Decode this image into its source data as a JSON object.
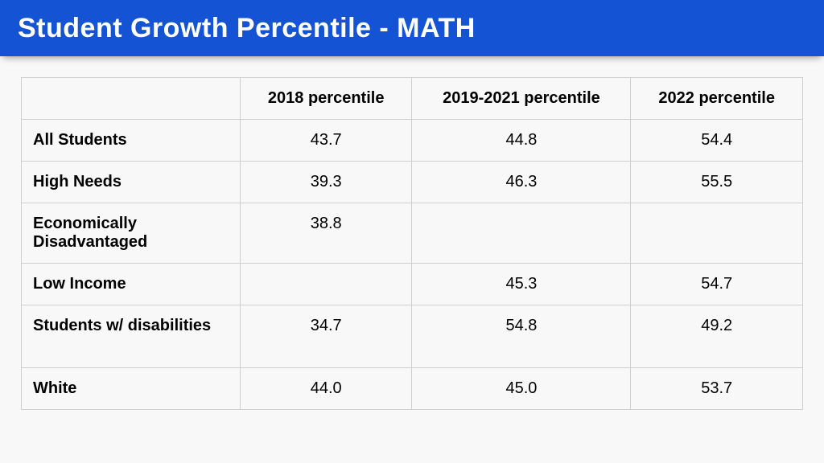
{
  "header": {
    "title": "Student Growth Percentile - MATH",
    "bg_color": "#1353d4",
    "text_color": "#ffffff",
    "title_fontsize": 34
  },
  "page": {
    "background_color": "#f8f8f8",
    "border_color": "#cfcfcf",
    "text_color": "#000000",
    "header_fontsize": 20,
    "cell_fontsize": 20
  },
  "table": {
    "type": "table",
    "column_widths_pct": [
      28,
      22,
      28,
      22
    ],
    "columns": [
      "",
      "2018 percentile",
      "2019-2021 percentile",
      "2022 percentile"
    ],
    "rows": [
      {
        "label": "All Students",
        "cells": [
          "43.7",
          "44.8",
          "54.4"
        ],
        "tall": false
      },
      {
        "label": "High Needs",
        "cells": [
          "39.3",
          "46.3",
          "55.5"
        ],
        "tall": false
      },
      {
        "label": "Economically Disadvantaged",
        "cells": [
          "38.8",
          "",
          ""
        ],
        "tall": false
      },
      {
        "label": "Low Income",
        "cells": [
          "",
          "45.3",
          "54.7"
        ],
        "tall": false
      },
      {
        "label": "Students w/ disabilities",
        "cells": [
          "34.7",
          "54.8",
          "49.2"
        ],
        "tall": true
      },
      {
        "label": "White",
        "cells": [
          "44.0",
          "45.0",
          "53.7"
        ],
        "tall": false
      }
    ]
  }
}
